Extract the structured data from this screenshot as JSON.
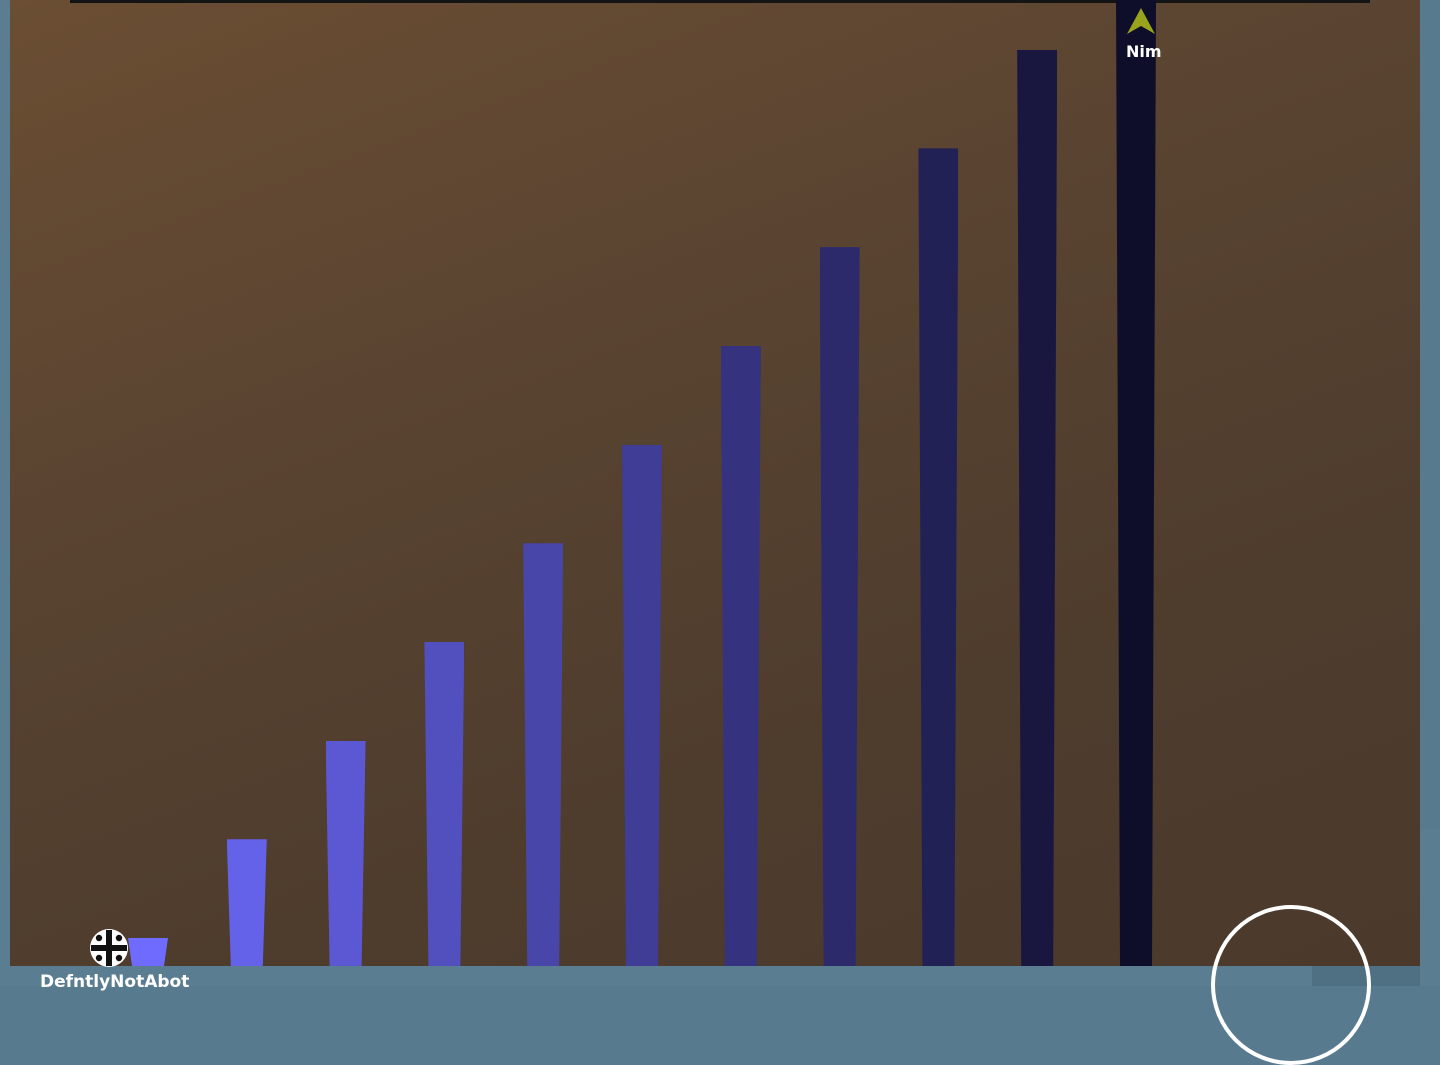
{
  "player": {
    "name": "DefntlyNotAbot",
    "icon": "cross-orb-icon"
  },
  "rival": {
    "name": "Nim",
    "icon": "arrow-up-icon",
    "color": "#9aa31c"
  },
  "colors": {
    "pillar_lightest": "#6f6bff",
    "pillar_darkest": "#0f0e2a",
    "wall": "#5b7d92",
    "background": "#5a4431"
  },
  "pillars": [
    {
      "level": 1
    },
    {
      "level": 2
    },
    {
      "level": 3
    },
    {
      "level": 4
    },
    {
      "level": 5
    },
    {
      "level": 6
    },
    {
      "level": 7
    },
    {
      "level": 8
    },
    {
      "level": 9
    },
    {
      "level": 10
    },
    {
      "level": 11
    }
  ]
}
